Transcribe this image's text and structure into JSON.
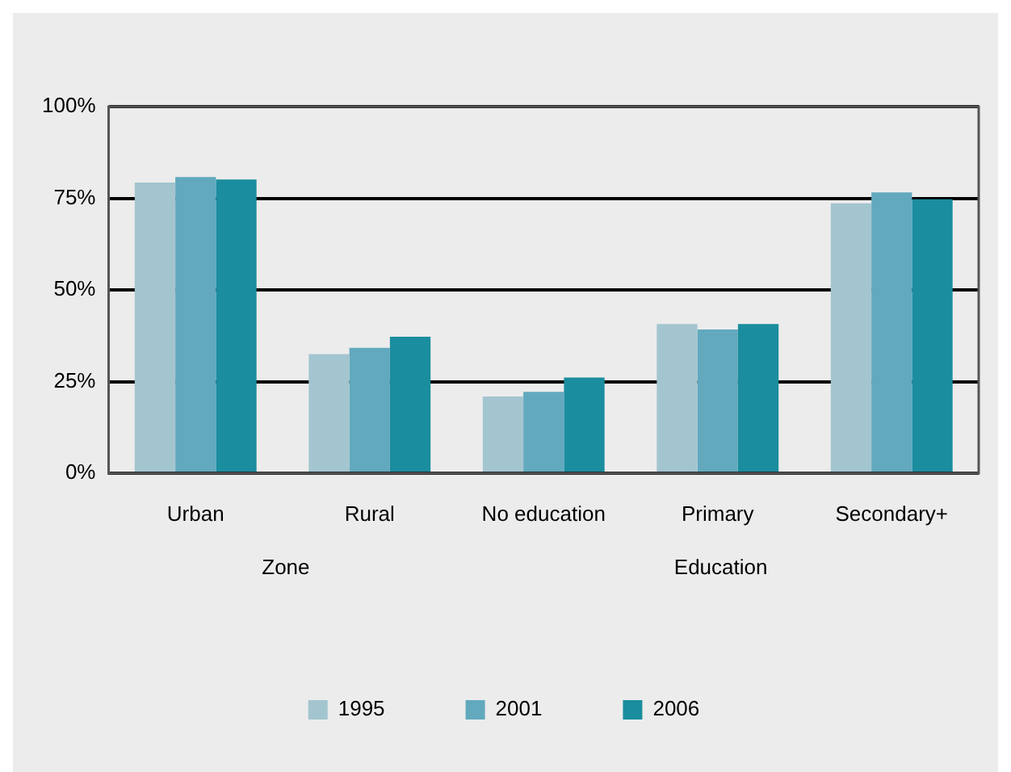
{
  "chart_data": {
    "type": "bar",
    "categories": [
      "Urban",
      "Rural",
      "No education",
      "Primary",
      "Secondary+"
    ],
    "series": [
      {
        "name": "1995",
        "color": "#a3c5cf",
        "values": [
          79.3,
          32.5,
          20.9,
          40.7,
          73.6
        ]
      },
      {
        "name": "2001",
        "color": "#62a9be",
        "values": [
          80.8,
          34.2,
          22.2,
          39.2,
          76.6
        ]
      },
      {
        "name": "2006",
        "color": "#1a8d9e",
        "values": [
          80.1,
          37.2,
          26.1,
          40.7,
          74.7
        ]
      }
    ],
    "ylim": [
      0,
      100
    ],
    "yticks": [
      {
        "value": 0,
        "label": "0%"
      },
      {
        "value": 25,
        "label": "25%"
      },
      {
        "value": 50,
        "label": "50%"
      },
      {
        "value": 75,
        "label": "75%"
      },
      {
        "value": 100,
        "label": "100%"
      }
    ],
    "grid": "y",
    "legend": "bottom",
    "annotations": [
      "Zone",
      "Education"
    ]
  }
}
